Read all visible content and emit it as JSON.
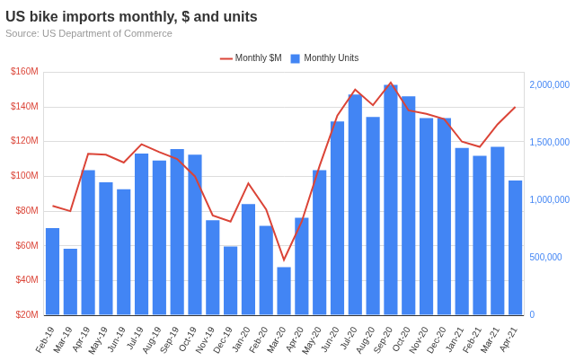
{
  "chart_data": {
    "type": "bar",
    "title": "US bike imports monthly, $ and units",
    "subtitle": "Source: US Department of Commerce",
    "categories": [
      "Feb-19",
      "Mar-19",
      "Apr-19",
      "May-19",
      "Jun-19",
      "Jul-19",
      "Aug-19",
      "Sep-19",
      "Oct-19",
      "Nov-19",
      "Dec-19",
      "Jan-20",
      "Feb-20",
      "Mar-20",
      "Apr-20",
      "May-20",
      "Jun-20",
      "Jul-20",
      "Aug-20",
      "Sep-20",
      "Oct-20",
      "Nov-20",
      "Dec-20",
      "Jan-21",
      "Feb-21",
      "Mar-21",
      "Apr-21"
    ],
    "series": [
      {
        "name": "Monthly Units",
        "type": "bar",
        "color": "#4285f4",
        "axis": "y2",
        "values": [
          760000,
          580000,
          1265000,
          1160000,
          1100000,
          1410000,
          1350000,
          1450000,
          1400000,
          830000,
          600000,
          970000,
          780000,
          420000,
          850000,
          1265000,
          1690000,
          1925000,
          1730000,
          2010000,
          1910000,
          1720000,
          1720000,
          1460000,
          1390000,
          1470000,
          1175000
        ]
      },
      {
        "name": "Monthly $M",
        "type": "line",
        "color": "#db4437",
        "axis": "y",
        "values": [
          83,
          80,
          113,
          112.5,
          108,
          118.5,
          114,
          110,
          100,
          77.5,
          74,
          96,
          81,
          52,
          74,
          106,
          135,
          150,
          141,
          154,
          138,
          136,
          133,
          120,
          117,
          130,
          140
        ]
      }
    ],
    "ylim": [
      20,
      160
    ],
    "yticks": [
      {
        "value": 20,
        "label": "$20M"
      },
      {
        "value": 40,
        "label": "$40M"
      },
      {
        "value": 60,
        "label": "$60M"
      },
      {
        "value": 80,
        "label": "$80M"
      },
      {
        "value": 100,
        "label": "$100M"
      },
      {
        "value": 120,
        "label": "$120M"
      },
      {
        "value": 140,
        "label": "$140M"
      },
      {
        "value": 160,
        "label": "$160M"
      }
    ],
    "y2lim": [
      0,
      2120000
    ],
    "y2ticks": [
      0,
      {
        "value": 500000,
        "label": "500,000"
      },
      {
        "value": 1000000,
        "label": "1,000,000"
      },
      {
        "value": 1500000,
        "label": "1,500,000"
      },
      {
        "value": 2000000,
        "label": "2,000,000"
      }
    ],
    "grid": true,
    "legend": "top"
  }
}
